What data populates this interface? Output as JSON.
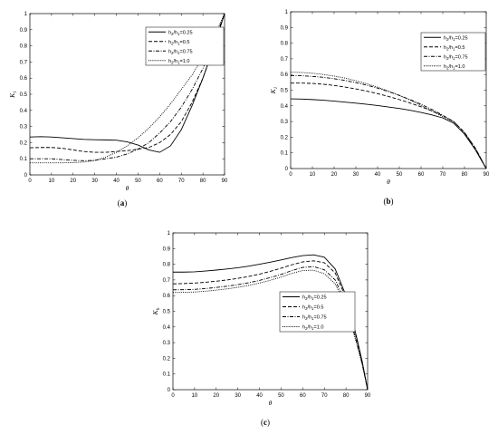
{
  "chart_data": [
    {
      "type": "line",
      "panel_label": "(a)",
      "xlabel": "θ",
      "ylabel": "K",
      "ylabel_sub": "1",
      "xlim": [
        0,
        90
      ],
      "ylim": [
        0,
        1
      ],
      "xticks": [
        0,
        10,
        20,
        30,
        40,
        50,
        60,
        70,
        80,
        90
      ],
      "yticks": [
        0,
        0.1,
        0.2,
        0.3,
        0.4,
        0.5,
        0.6,
        0.7,
        0.8,
        0.9,
        1
      ],
      "legend_position": "top-right",
      "series": [
        {
          "name": "h2/h1=0.25",
          "label_main": "h",
          "label_s1": "2",
          "label_mid": "/h",
          "label_s2": "1",
          "label_end": "=0.25",
          "style": "solid",
          "x": [
            0,
            5,
            10,
            15,
            20,
            25,
            30,
            35,
            40,
            45,
            50,
            55,
            60,
            65,
            70,
            75,
            80,
            85,
            90
          ],
          "y": [
            0.235,
            0.237,
            0.235,
            0.23,
            0.225,
            0.22,
            0.218,
            0.217,
            0.215,
            0.205,
            0.185,
            0.155,
            0.14,
            0.18,
            0.28,
            0.43,
            0.6,
            0.79,
            1.0
          ]
        },
        {
          "name": "h2/h1=0.5",
          "label_main": "h",
          "label_s1": "2",
          "label_mid": "/h",
          "label_s2": "1",
          "label_end": "=0.5",
          "style": "dashed",
          "x": [
            0,
            5,
            10,
            15,
            20,
            25,
            30,
            35,
            40,
            45,
            50,
            55,
            60,
            65,
            70,
            75,
            80,
            85,
            90
          ],
          "y": [
            0.168,
            0.17,
            0.17,
            0.165,
            0.155,
            0.145,
            0.14,
            0.14,
            0.145,
            0.15,
            0.16,
            0.17,
            0.2,
            0.25,
            0.33,
            0.45,
            0.6,
            0.79,
            1.0
          ]
        },
        {
          "name": "h2/h1=0.75",
          "label_main": "h",
          "label_s1": "2",
          "label_mid": "/h",
          "label_s2": "1",
          "label_end": "=0.75",
          "style": "dashdot",
          "x": [
            0,
            5,
            10,
            15,
            20,
            25,
            30,
            35,
            40,
            45,
            50,
            55,
            60,
            65,
            70,
            75,
            80,
            85,
            90
          ],
          "y": [
            0.1,
            0.1,
            0.1,
            0.095,
            0.09,
            0.088,
            0.09,
            0.1,
            0.11,
            0.13,
            0.16,
            0.2,
            0.26,
            0.33,
            0.42,
            0.53,
            0.66,
            0.82,
            1.0
          ]
        },
        {
          "name": "h2/h1=1.0",
          "label_main": "h",
          "label_s1": "2",
          "label_mid": "/h",
          "label_s2": "1",
          "label_end": "=1.0",
          "style": "dotted",
          "x": [
            0,
            5,
            10,
            15,
            20,
            25,
            30,
            35,
            40,
            45,
            50,
            55,
            60,
            65,
            70,
            75,
            80,
            85,
            90
          ],
          "y": [
            0.075,
            0.075,
            0.075,
            0.075,
            0.076,
            0.08,
            0.09,
            0.11,
            0.14,
            0.18,
            0.23,
            0.29,
            0.36,
            0.44,
            0.53,
            0.62,
            0.73,
            0.85,
            1.0
          ]
        }
      ]
    },
    {
      "type": "line",
      "panel_label": "(b)",
      "xlabel": "θ",
      "ylabel": "K",
      "ylabel_sub": "1",
      "xlim": [
        0,
        90
      ],
      "ylim": [
        0,
        1
      ],
      "xticks": [
        0,
        10,
        20,
        30,
        40,
        50,
        60,
        70,
        80,
        90
      ],
      "yticks": [
        0,
        0.1,
        0.2,
        0.3,
        0.4,
        0.5,
        0.6,
        0.7,
        0.8,
        0.9,
        1
      ],
      "legend_position": "top-right",
      "series": [
        {
          "name": "h2/h1=0.25",
          "label_main": "h",
          "label_s1": "2",
          "label_mid": "/h",
          "label_s2": "1",
          "label_end": "=0.25",
          "style": "solid",
          "x": [
            0,
            5,
            10,
            15,
            20,
            25,
            30,
            35,
            40,
            45,
            50,
            55,
            60,
            65,
            70,
            75,
            80,
            82.5,
            85,
            87.5,
            90
          ],
          "y": [
            0.445,
            0.443,
            0.44,
            0.436,
            0.43,
            0.424,
            0.417,
            0.41,
            0.402,
            0.393,
            0.383,
            0.372,
            0.358,
            0.342,
            0.323,
            0.29,
            0.22,
            0.17,
            0.12,
            0.06,
            0.0
          ]
        },
        {
          "name": "h2/h1=0.5",
          "label_main": "h",
          "label_s1": "2",
          "label_mid": "/h",
          "label_s2": "1",
          "label_end": "=0.5",
          "style": "dashed",
          "x": [
            0,
            5,
            10,
            15,
            20,
            25,
            30,
            35,
            40,
            45,
            50,
            55,
            60,
            65,
            70,
            75,
            80,
            82.5,
            85,
            87.5,
            90
          ],
          "y": [
            0.545,
            0.545,
            0.543,
            0.538,
            0.53,
            0.52,
            0.508,
            0.494,
            0.478,
            0.46,
            0.44,
            0.418,
            0.394,
            0.368,
            0.338,
            0.3,
            0.23,
            0.18,
            0.13,
            0.065,
            0.0
          ]
        },
        {
          "name": "h2/h1=0.75",
          "label_main": "h",
          "label_s1": "2",
          "label_mid": "/h",
          "label_s2": "1",
          "label_end": "=0.75",
          "style": "dashdot",
          "x": [
            0,
            5,
            10,
            15,
            20,
            25,
            30,
            35,
            40,
            45,
            50,
            55,
            60,
            65,
            70,
            75,
            80,
            82.5,
            85,
            87.5,
            90
          ],
          "y": [
            0.592,
            0.592,
            0.588,
            0.582,
            0.573,
            0.562,
            0.548,
            0.532,
            0.513,
            0.491,
            0.467,
            0.44,
            0.41,
            0.377,
            0.34,
            0.3,
            0.23,
            0.18,
            0.13,
            0.065,
            0.0
          ]
        },
        {
          "name": "h2/h1=1.0",
          "label_main": "h",
          "label_s1": "2",
          "label_mid": "/h",
          "label_s2": "1",
          "label_end": "=1.0",
          "style": "dotted",
          "x": [
            0,
            5,
            10,
            15,
            20,
            25,
            30,
            35,
            40,
            45,
            50,
            55,
            60,
            65,
            70,
            75,
            80,
            82.5,
            85,
            87.5,
            90
          ],
          "y": [
            0.615,
            0.613,
            0.608,
            0.6,
            0.59,
            0.577,
            0.56,
            0.541,
            0.519,
            0.494,
            0.466,
            0.436,
            0.403,
            0.367,
            0.33,
            0.29,
            0.22,
            0.17,
            0.12,
            0.06,
            0.0
          ]
        }
      ]
    },
    {
      "type": "line",
      "panel_label": "(c)",
      "xlabel": "θ",
      "ylabel": "K",
      "ylabel_sub": "b",
      "xlim": [
        0,
        90
      ],
      "ylim": [
        0,
        1
      ],
      "xticks": [
        0,
        10,
        20,
        30,
        40,
        50,
        60,
        70,
        80,
        90
      ],
      "yticks": [
        0,
        0.1,
        0.2,
        0.3,
        0.4,
        0.5,
        0.6,
        0.7,
        0.8,
        0.9,
        1
      ],
      "legend_position": "right",
      "series": [
        {
          "name": "h2/h1=0.25",
          "label_main": "h",
          "label_s1": "2",
          "label_mid": "/h",
          "label_s2": "1",
          "label_end": "=0.25",
          "style": "solid",
          "x": [
            0,
            5,
            10,
            15,
            20,
            25,
            30,
            35,
            40,
            45,
            50,
            55,
            60,
            65,
            70,
            75,
            80,
            85,
            87.5,
            90
          ],
          "y": [
            0.75,
            0.75,
            0.752,
            0.757,
            0.763,
            0.77,
            0.778,
            0.788,
            0.8,
            0.813,
            0.828,
            0.843,
            0.855,
            0.86,
            0.845,
            0.77,
            0.6,
            0.33,
            0.18,
            0.0
          ]
        },
        {
          "name": "h2/h1=0.5",
          "label_main": "h",
          "label_s1": "2",
          "label_mid": "/h",
          "label_s2": "1",
          "label_end": "=0.5",
          "style": "dashed",
          "x": [
            0,
            5,
            10,
            15,
            20,
            25,
            30,
            35,
            40,
            45,
            50,
            55,
            60,
            65,
            70,
            75,
            80,
            85,
            87.5,
            90
          ],
          "y": [
            0.675,
            0.677,
            0.68,
            0.685,
            0.692,
            0.7,
            0.71,
            0.722,
            0.737,
            0.755,
            0.775,
            0.797,
            0.815,
            0.822,
            0.81,
            0.745,
            0.585,
            0.32,
            0.175,
            0.0
          ]
        },
        {
          "name": "h2/h1=0.75",
          "label_main": "h",
          "label_s1": "2",
          "label_mid": "/h",
          "label_s2": "1",
          "label_end": "=0.75",
          "style": "dashdot",
          "x": [
            0,
            5,
            10,
            15,
            20,
            25,
            30,
            35,
            40,
            45,
            50,
            55,
            60,
            65,
            70,
            75,
            80,
            85,
            87.5,
            90
          ],
          "y": [
            0.637,
            0.638,
            0.64,
            0.645,
            0.652,
            0.66,
            0.67,
            0.682,
            0.697,
            0.715,
            0.735,
            0.76,
            0.78,
            0.785,
            0.765,
            0.7,
            0.55,
            0.3,
            0.165,
            0.0
          ]
        },
        {
          "name": "h2/h1=1.0",
          "label_main": "h",
          "label_s1": "2",
          "label_mid": "/h",
          "label_s2": "1",
          "label_end": "=1.0",
          "style": "dotted",
          "x": [
            0,
            5,
            10,
            15,
            20,
            25,
            30,
            35,
            40,
            45,
            50,
            55,
            60,
            65,
            70,
            75,
            80,
            85,
            87.5,
            90
          ],
          "y": [
            0.62,
            0.621,
            0.623,
            0.628,
            0.635,
            0.643,
            0.653,
            0.665,
            0.68,
            0.698,
            0.718,
            0.742,
            0.76,
            0.762,
            0.74,
            0.675,
            0.53,
            0.29,
            0.16,
            0.0
          ]
        }
      ]
    }
  ]
}
